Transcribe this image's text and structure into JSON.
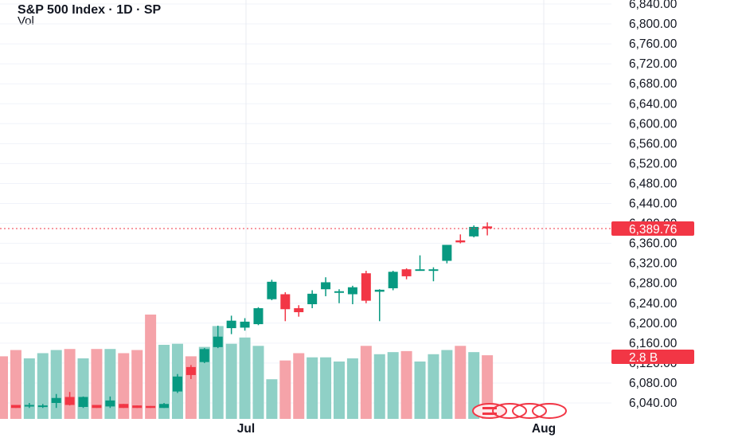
{
  "header": {
    "title": "S&P 500 Index · 1D · SP",
    "volume_label": "Vol"
  },
  "colors": {
    "up": "#089981",
    "down": "#f23645",
    "up_volume": "#8fd0c6",
    "down_volume": "#f5a3a9",
    "grid": "#f0f3fa",
    "price_line": "#f23645"
  },
  "chart_data": {
    "type": "candlestick",
    "title": "S&P 500 Index · 1D · SP",
    "ylim": [
      6020,
      6860
    ],
    "y_ticks": [
      "6,840.00",
      "6,800.00",
      "6,760.00",
      "6,720.00",
      "6,680.00",
      "6,640.00",
      "6,600.00",
      "6,560.00",
      "6,520.00",
      "6,480.00",
      "6,440.00",
      "6,400.00",
      "6,360.00",
      "6,320.00",
      "6,280.00",
      "6,240.00",
      "6,200.00",
      "6,160.00",
      "6,120.00",
      "6,080.00",
      "6,040.00"
    ],
    "x_ticks": [
      "Jul",
      "Aug"
    ],
    "grid": true,
    "last_price_label": "6,389.76",
    "last_price": 6389.76,
    "volume_label": "2.8 B",
    "candles": [
      {
        "o": null,
        "h": null,
        "l": null,
        "c": null,
        "vol": 0.6,
        "dir": "down"
      },
      {
        "o": 6036,
        "h": 6036,
        "l": 6030,
        "c": 6030,
        "vol": 0.66,
        "dir": "down"
      },
      {
        "o": 6034,
        "h": 6040,
        "l": 6030,
        "c": 6036,
        "vol": 0.58,
        "dir": "up"
      },
      {
        "o": 6033,
        "h": 6038,
        "l": 6030,
        "c": 6035,
        "vol": 0.63,
        "dir": "up"
      },
      {
        "o": 6040,
        "h": 6058,
        "l": 6030,
        "c": 6050,
        "vol": 0.66,
        "dir": "up"
      },
      {
        "o": 6052,
        "h": 6062,
        "l": 6035,
        "c": 6036,
        "vol": 0.67,
        "dir": "down"
      },
      {
        "o": 6032,
        "h": 6053,
        "l": 6030,
        "c": 6052,
        "vol": 0.58,
        "dir": "up"
      },
      {
        "o": 6036,
        "h": 6036,
        "l": 6030,
        "c": 6030,
        "vol": 0.67,
        "dir": "down"
      },
      {
        "o": 6033,
        "h": 6053,
        "l": 6030,
        "c": 6045,
        "vol": 0.67,
        "dir": "up"
      },
      {
        "o": 6038,
        "h": 6038,
        "l": 6030,
        "c": 6030,
        "vol": 0.63,
        "dir": "down"
      },
      {
        "o": 6035,
        "h": 6035,
        "l": 6030,
        "c": 6030,
        "vol": 0.66,
        "dir": "down"
      },
      {
        "o": 6034,
        "h": 6034,
        "l": 6030,
        "c": 6030,
        "vol": 1.0,
        "dir": "down"
      },
      {
        "o": 6030,
        "h": 6040,
        "l": 6030,
        "c": 6038,
        "vol": 0.71,
        "dir": "up"
      },
      {
        "o": 6063,
        "h": 6098,
        "l": 6060,
        "c": 6093,
        "vol": 0.72,
        "dir": "up"
      },
      {
        "o": 6112,
        "h": 6116,
        "l": 6088,
        "c": 6096,
        "vol": 0.6,
        "dir": "down"
      },
      {
        "o": 6122,
        "h": 6150,
        "l": 6120,
        "c": 6148,
        "vol": 0.69,
        "dir": "up"
      },
      {
        "o": 6152,
        "h": 6195,
        "l": 6150,
        "c": 6173,
        "vol": 0.89,
        "dir": "up"
      },
      {
        "o": 6190,
        "h": 6215,
        "l": 6178,
        "c": 6205,
        "vol": 0.72,
        "dir": "up"
      },
      {
        "o": 6191,
        "h": 6210,
        "l": 6185,
        "c": 6203,
        "vol": 0.78,
        "dir": "up"
      },
      {
        "o": 6198,
        "h": 6232,
        "l": 6196,
        "c": 6230,
        "vol": 0.7,
        "dir": "up"
      },
      {
        "o": 6248,
        "h": 6287,
        "l": 6246,
        "c": 6283,
        "vol": 0.38,
        "dir": "up"
      },
      {
        "o": 6258,
        "h": 6262,
        "l": 6204,
        "c": 6228,
        "vol": 0.56,
        "dir": "down"
      },
      {
        "o": 6230,
        "h": 6236,
        "l": 6213,
        "c": 6222,
        "vol": 0.63,
        "dir": "down"
      },
      {
        "o": 6238,
        "h": 6266,
        "l": 6230,
        "c": 6259,
        "vol": 0.59,
        "dir": "up"
      },
      {
        "o": 6268,
        "h": 6292,
        "l": 6254,
        "c": 6282,
        "vol": 0.59,
        "dir": "up"
      },
      {
        "o": 6262,
        "h": 6268,
        "l": 6240,
        "c": 6264,
        "vol": 0.55,
        "dir": "up"
      },
      {
        "o": 6258,
        "h": 6275,
        "l": 6238,
        "c": 6272,
        "vol": 0.58,
        "dir": "up"
      },
      {
        "o": 6300,
        "h": 6305,
        "l": 6240,
        "c": 6245,
        "vol": 0.7,
        "dir": "down"
      },
      {
        "o": 6263,
        "h": 6268,
        "l": 6204,
        "c": 6267,
        "vol": 0.62,
        "dir": "up"
      },
      {
        "o": 6270,
        "h": 6305,
        "l": 6266,
        "c": 6303,
        "vol": 0.64,
        "dir": "up"
      },
      {
        "o": 6308,
        "h": 6310,
        "l": 6288,
        "c": 6294,
        "vol": 0.65,
        "dir": "down"
      },
      {
        "o": 6306,
        "h": 6336,
        "l": 6305,
        "c": 6308,
        "vol": 0.55,
        "dir": "up"
      },
      {
        "o": 6306,
        "h": 6312,
        "l": 6284,
        "c": 6308,
        "vol": 0.62,
        "dir": "up"
      },
      {
        "o": 6325,
        "h": 6357,
        "l": 6320,
        "c": 6357,
        "vol": 0.66,
        "dir": "up"
      },
      {
        "o": 6366,
        "h": 6378,
        "l": 6360,
        "c": 6362,
        "vol": 0.7,
        "dir": "down"
      },
      {
        "o": 6374,
        "h": 6396,
        "l": 6372,
        "c": 6393,
        "vol": 0.64,
        "dir": "up"
      },
      {
        "o": 6394,
        "h": 6402,
        "l": 6376,
        "c": 6390,
        "vol": 0.61,
        "dir": "down"
      }
    ]
  }
}
